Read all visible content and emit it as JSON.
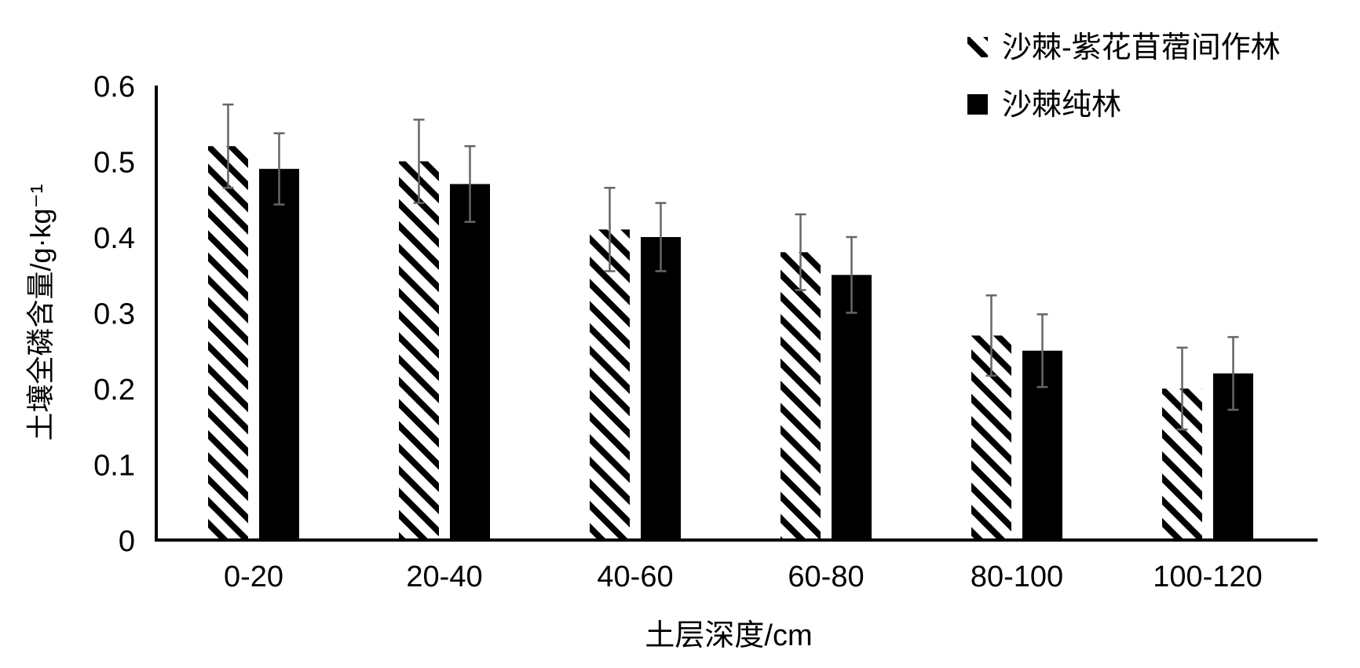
{
  "chart_data": {
    "type": "bar",
    "title": "",
    "xlabel": "土层深度/cm",
    "ylabel": "土壤全磷含量/g·kg⁻¹",
    "ylim": [
      0,
      0.6
    ],
    "yticks": [
      "0",
      "0.1",
      "0.2",
      "0.3",
      "0.4",
      "0.5",
      "0.6"
    ],
    "ytick_values": [
      0,
      0.1,
      0.2,
      0.3,
      0.4,
      0.5,
      0.6
    ],
    "grid": false,
    "legend_position": "top-right",
    "categories": [
      "0-20",
      "20-40",
      "40-60",
      "60-80",
      "80-100",
      "100-120"
    ],
    "series": [
      {
        "name": "沙棘-紫花苜蓿间作林",
        "pattern": "hatched",
        "values": [
          0.52,
          0.5,
          0.41,
          0.38,
          0.27,
          0.2
        ],
        "errors": [
          0.055,
          0.055,
          0.055,
          0.05,
          0.053,
          0.054
        ]
      },
      {
        "name": "沙棘纯林",
        "pattern": "solid",
        "color": "#000000",
        "values": [
          0.49,
          0.47,
          0.4,
          0.35,
          0.25,
          0.22
        ],
        "errors": [
          0.047,
          0.05,
          0.045,
          0.05,
          0.048,
          0.048
        ]
      }
    ],
    "error_bar_color": "#666666"
  }
}
